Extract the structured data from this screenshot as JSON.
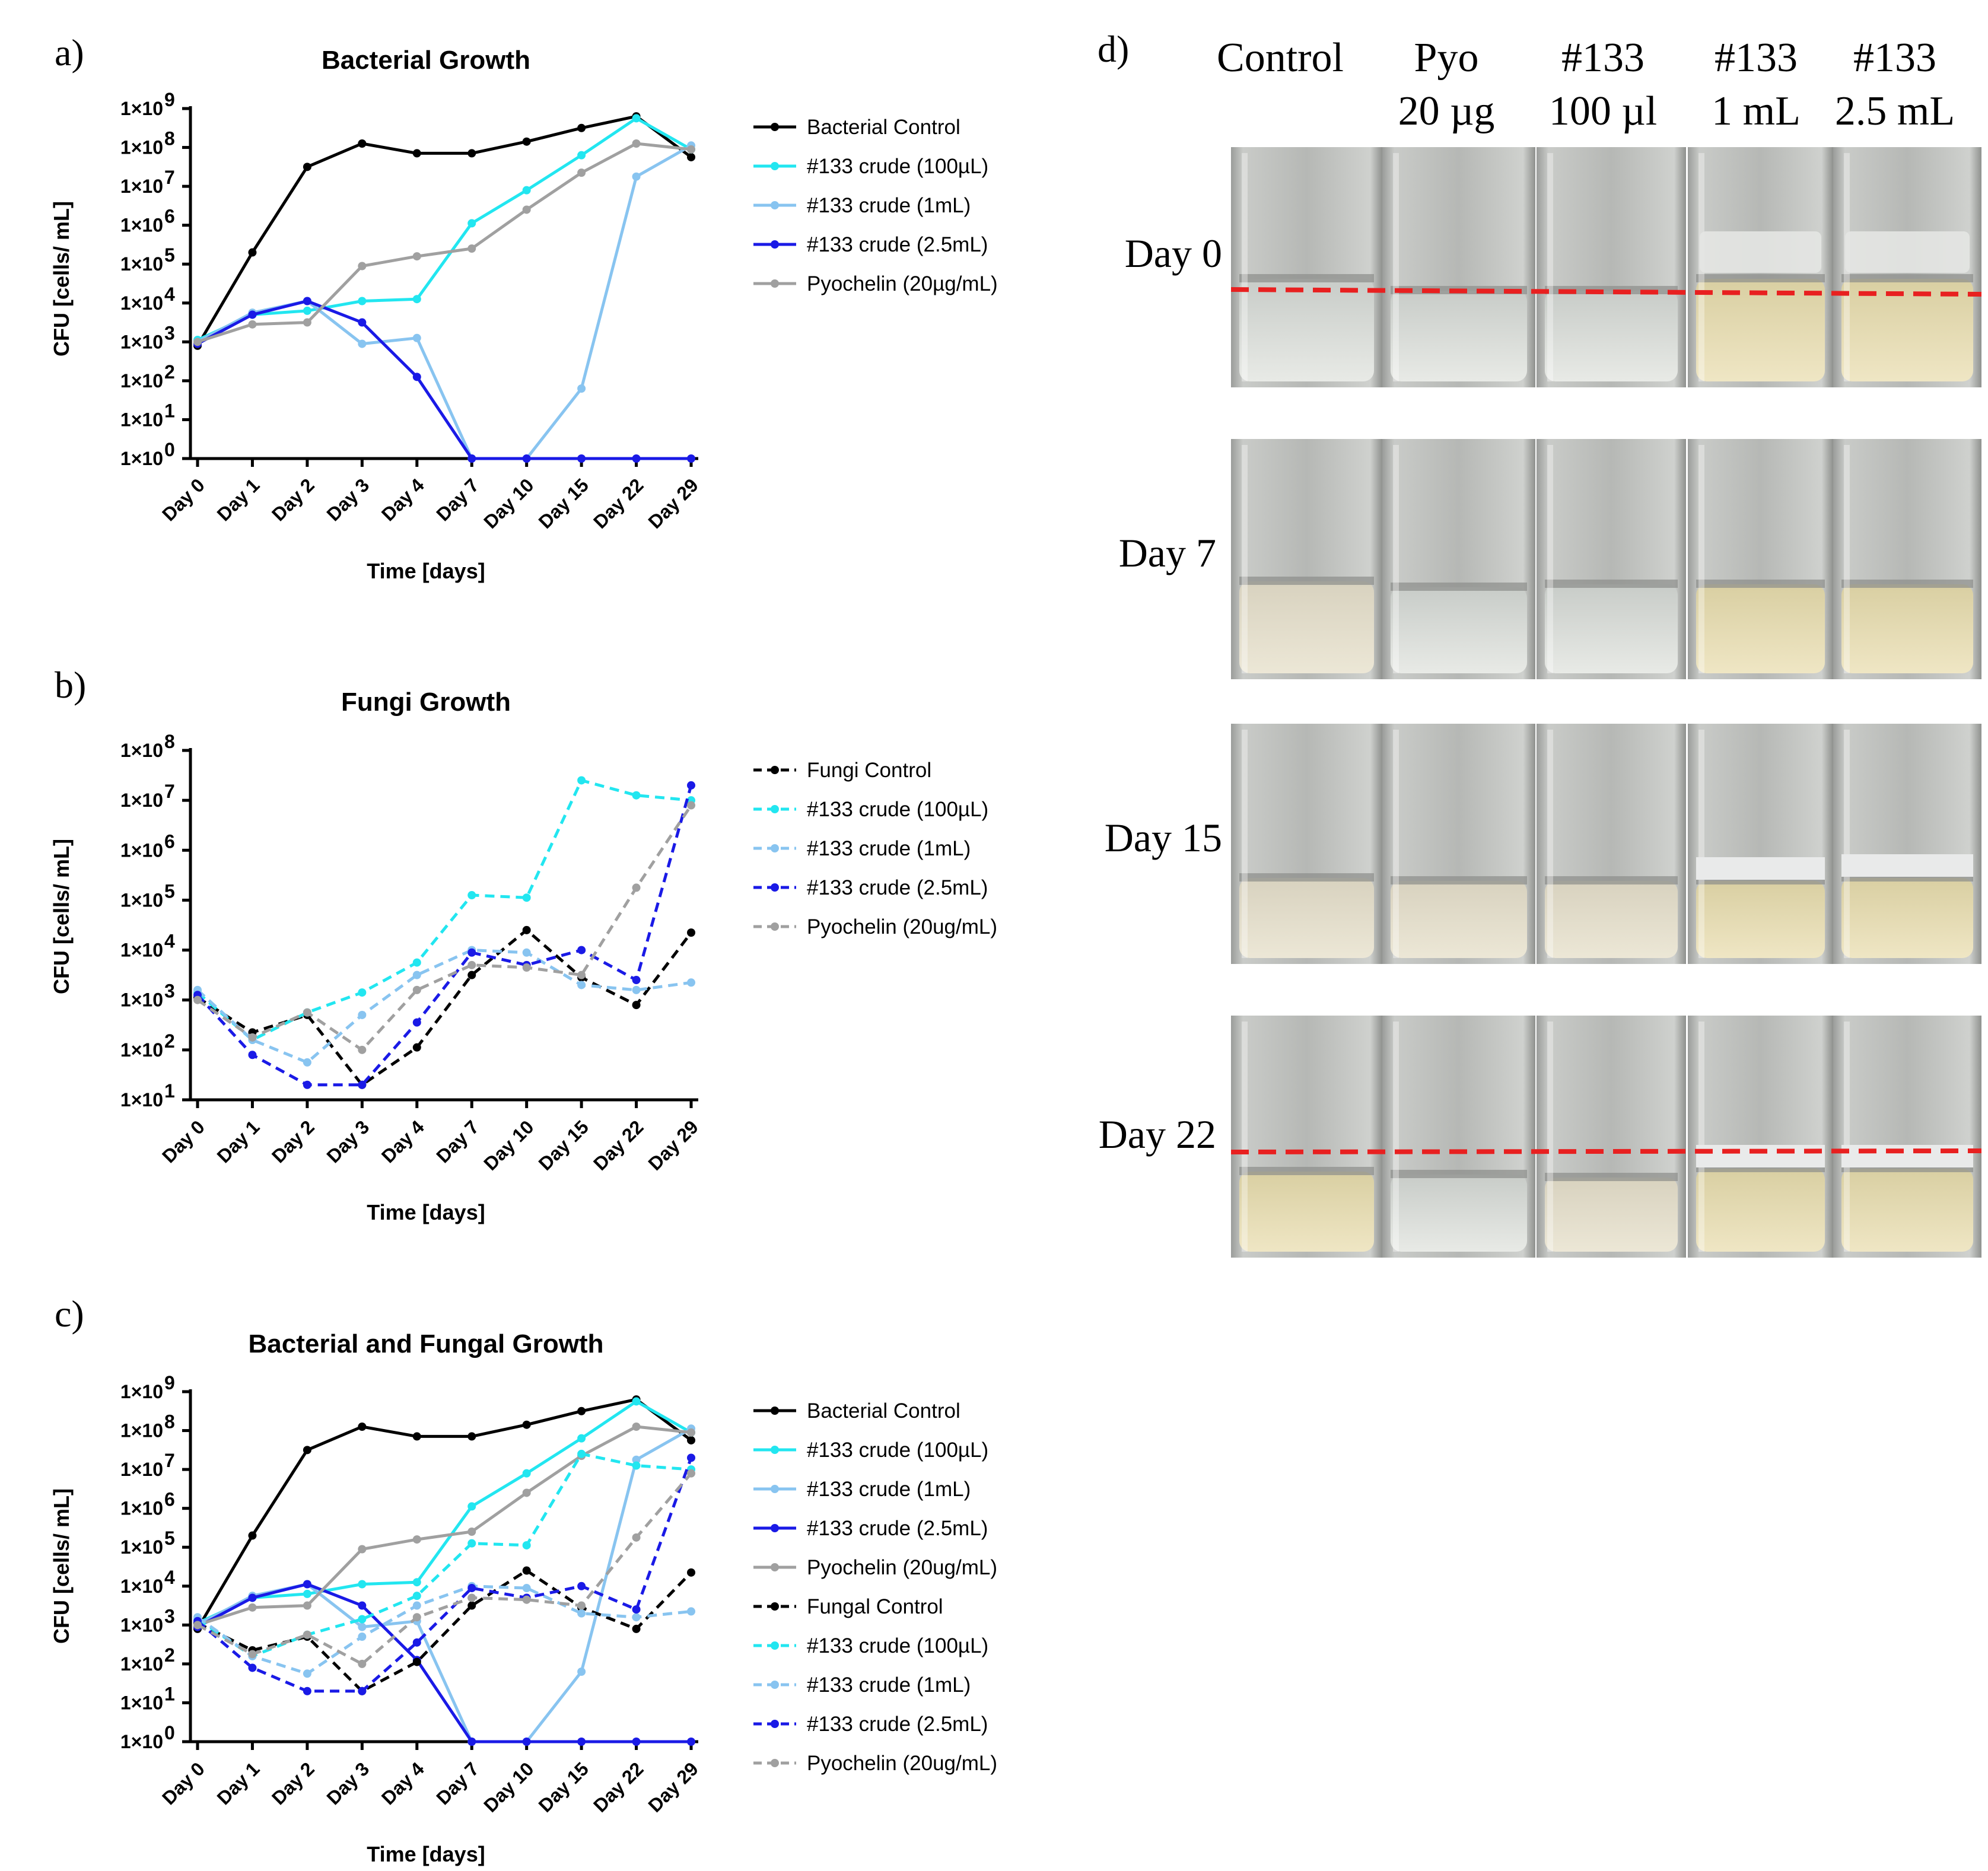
{
  "panels": [
    {
      "letter": "a)"
    },
    {
      "letter": "b)"
    },
    {
      "letter": "c)"
    },
    {
      "letter": "d)"
    }
  ],
  "chart_data": [
    {
      "id": "a",
      "type": "line",
      "title": "Bacterial Growth",
      "xlabel": "Time [days]",
      "ylabel": "CFU [cells/ mL]",
      "yscale": "log10",
      "ylim": [
        0,
        9
      ],
      "yticks": [
        {
          "exp": 9,
          "label": "1×10",
          "sup": "9"
        },
        {
          "exp": 8,
          "label": "1×10",
          "sup": "8"
        },
        {
          "exp": 7,
          "label": "1×10",
          "sup": "7"
        },
        {
          "exp": 6,
          "label": "1×10",
          "sup": "6"
        },
        {
          "exp": 5,
          "label": "1×10",
          "sup": "5"
        },
        {
          "exp": 4,
          "label": "1×10",
          "sup": "4"
        },
        {
          "exp": 3,
          "label": "1×10",
          "sup": "3"
        },
        {
          "exp": 2,
          "label": "1×10",
          "sup": "2"
        },
        {
          "exp": 1,
          "label": "1×10",
          "sup": "1"
        },
        {
          "exp": 0,
          "label": "1×10",
          "sup": "0"
        }
      ],
      "categories": [
        "Day 0",
        "Day 1",
        "Day 2",
        "Day 3",
        "Day 4",
        "Day 7",
        "Day 10",
        "Day 15",
        "Day 22",
        "Day 29"
      ],
      "series": [
        {
          "name": "Bacterial Control",
          "color": "#000000",
          "dash": false,
          "log10_values": [
            2.9,
            5.3,
            7.5,
            8.1,
            7.85,
            7.85,
            8.15,
            8.5,
            8.8,
            7.75
          ]
        },
        {
          "name": "#133 crude (100µL)",
          "color": "#22E6F0",
          "dash": false,
          "log10_values": [
            3.05,
            3.7,
            3.8,
            4.05,
            4.1,
            6.05,
            6.9,
            7.8,
            8.75,
            7.95
          ]
        },
        {
          "name": "#133 crude (1mL)",
          "color": "#88C4F0",
          "dash": false,
          "log10_values": [
            3.0,
            3.75,
            4.05,
            2.95,
            3.1,
            0.0,
            0.0,
            1.8,
            7.25,
            8.05
          ]
        },
        {
          "name": "#133 crude (2.5mL)",
          "color": "#1A1AE6",
          "dash": false,
          "log10_values": [
            2.95,
            3.7,
            4.05,
            3.5,
            2.1,
            0.0,
            0.0,
            0.0,
            0.0,
            0.0
          ]
        },
        {
          "name": "Pyochelin (20µg/mL)",
          "color": "#A0A0A0",
          "dash": false,
          "log10_values": [
            3.0,
            3.45,
            3.5,
            4.95,
            5.2,
            5.4,
            6.4,
            7.35,
            8.1,
            7.95
          ]
        }
      ]
    },
    {
      "id": "b",
      "type": "line",
      "title": "Fungi Growth",
      "xlabel": "Time [days]",
      "ylabel": "CFU [cells/ mL]",
      "yscale": "log10",
      "ylim": [
        1,
        8
      ],
      "yticks": [
        {
          "exp": 8,
          "label": "1×10",
          "sup": "8"
        },
        {
          "exp": 7,
          "label": "1×10",
          "sup": "7"
        },
        {
          "exp": 6,
          "label": "1×10",
          "sup": "6"
        },
        {
          "exp": 5,
          "label": "1×10",
          "sup": "5"
        },
        {
          "exp": 4,
          "label": "1×10",
          "sup": "4"
        },
        {
          "exp": 3,
          "label": "1×10",
          "sup": "3"
        },
        {
          "exp": 2,
          "label": "1×10",
          "sup": "2"
        },
        {
          "exp": 1,
          "label": "1×10",
          "sup": "1"
        }
      ],
      "categories": [
        "Day 0",
        "Day 1",
        "Day 2",
        "Day 3",
        "Day 4",
        "Day 7",
        "Day 10",
        "Day 15",
        "Day 22",
        "Day 29"
      ],
      "series": [
        {
          "name": "Fungi Control",
          "color": "#000000",
          "dash": true,
          "log10_values": [
            3.05,
            2.35,
            2.7,
            1.3,
            2.05,
            3.5,
            4.4,
            3.45,
            2.9,
            4.35
          ]
        },
        {
          "name": "#133 crude (100µL)",
          "color": "#22E6F0",
          "dash": true,
          "log10_values": [
            3.15,
            2.2,
            2.75,
            3.15,
            3.75,
            5.1,
            5.05,
            7.4,
            7.1,
            7.0
          ]
        },
        {
          "name": "#133 crude (1mL)",
          "color": "#88C4F0",
          "dash": true,
          "log10_values": [
            3.2,
            2.2,
            1.75,
            2.7,
            3.5,
            4.0,
            3.95,
            3.3,
            3.2,
            3.35
          ]
        },
        {
          "name": "#133 crude (2.5mL)",
          "color": "#1A1AE6",
          "dash": true,
          "log10_values": [
            3.1,
            1.9,
            1.3,
            1.3,
            2.55,
            3.95,
            3.7,
            4.0,
            3.4,
            7.3
          ]
        },
        {
          "name": "Pyochelin (20ug/mL)",
          "color": "#A0A0A0",
          "dash": true,
          "log10_values": [
            3.0,
            2.25,
            2.75,
            2.0,
            3.2,
            3.7,
            3.65,
            3.5,
            5.25,
            6.9
          ]
        }
      ]
    },
    {
      "id": "c",
      "type": "line",
      "title": "Bacterial and Fungal Growth",
      "xlabel": "Time [days]",
      "ylabel": "CFU [cells/ mL]",
      "yscale": "log10",
      "ylim": [
        0,
        9
      ],
      "yticks": [
        {
          "exp": 9,
          "label": "1×10",
          "sup": "9"
        },
        {
          "exp": 8,
          "label": "1×10",
          "sup": "8"
        },
        {
          "exp": 7,
          "label": "1×10",
          "sup": "7"
        },
        {
          "exp": 6,
          "label": "1×10",
          "sup": "6"
        },
        {
          "exp": 5,
          "label": "1×10",
          "sup": "5"
        },
        {
          "exp": 4,
          "label": "1×10",
          "sup": "4"
        },
        {
          "exp": 3,
          "label": "1×10",
          "sup": "3"
        },
        {
          "exp": 2,
          "label": "1×10",
          "sup": "2"
        },
        {
          "exp": 1,
          "label": "1×10",
          "sup": "1"
        },
        {
          "exp": 0,
          "label": "1×10",
          "sup": "0"
        }
      ],
      "categories": [
        "Day 0",
        "Day 1",
        "Day 2",
        "Day 3",
        "Day 4",
        "Day 7",
        "Day 10",
        "Day 15",
        "Day 22",
        "Day 29"
      ],
      "series": [
        {
          "name": "Bacterial Control",
          "color": "#000000",
          "dash": false,
          "log10_values": [
            2.9,
            5.3,
            7.5,
            8.1,
            7.85,
            7.85,
            8.15,
            8.5,
            8.8,
            7.75
          ]
        },
        {
          "name": "#133 crude (100µL)",
          "color": "#22E6F0",
          "dash": false,
          "log10_values": [
            3.05,
            3.7,
            3.8,
            4.05,
            4.1,
            6.05,
            6.9,
            7.8,
            8.75,
            7.95
          ]
        },
        {
          "name": "#133 crude (1mL)",
          "color": "#88C4F0",
          "dash": false,
          "log10_values": [
            3.0,
            3.75,
            4.05,
            2.95,
            3.1,
            0.0,
            0.0,
            1.8,
            7.25,
            8.05
          ]
        },
        {
          "name": "#133 crude (2.5mL)",
          "color": "#1A1AE6",
          "dash": false,
          "log10_values": [
            2.95,
            3.7,
            4.05,
            3.5,
            2.1,
            0.0,
            0.0,
            0.0,
            0.0,
            0.0
          ]
        },
        {
          "name": "Pyochelin (20ug/mL)",
          "color": "#A0A0A0",
          "dash": false,
          "log10_values": [
            3.0,
            3.45,
            3.5,
            4.95,
            5.2,
            5.4,
            6.4,
            7.35,
            8.1,
            7.95
          ]
        },
        {
          "name": "Fungal Control",
          "color": "#000000",
          "dash": true,
          "log10_values": [
            3.05,
            2.35,
            2.7,
            1.3,
            2.05,
            3.5,
            4.4,
            3.45,
            2.9,
            4.35
          ]
        },
        {
          "name": "#133 crude (100µL)",
          "color": "#22E6F0",
          "dash": true,
          "log10_values": [
            3.15,
            2.2,
            2.75,
            3.15,
            3.75,
            5.1,
            5.05,
            7.4,
            7.1,
            7.0
          ]
        },
        {
          "name": "#133 crude (1mL)",
          "color": "#88C4F0",
          "dash": true,
          "log10_values": [
            3.2,
            2.2,
            1.75,
            2.7,
            3.5,
            4.0,
            3.95,
            3.3,
            3.2,
            3.35
          ]
        },
        {
          "name": "#133 crude (2.5mL)",
          "color": "#1A1AE6",
          "dash": true,
          "log10_values": [
            3.1,
            1.9,
            1.3,
            1.3,
            2.55,
            3.95,
            3.7,
            4.0,
            3.4,
            7.3
          ]
        },
        {
          "name": "Pyochelin (20ug/mL)",
          "color": "#A0A0A0",
          "dash": true,
          "log10_values": [
            3.0,
            2.25,
            2.75,
            2.0,
            3.2,
            3.7,
            3.65,
            3.5,
            5.25,
            6.9
          ]
        }
      ]
    }
  ],
  "photo_panel": {
    "columns": [
      {
        "line1": "Control",
        "line2": ""
      },
      {
        "line1": "Pyo",
        "line2": "20 µg"
      },
      {
        "line1": "#133",
        "line2": "100 µl"
      },
      {
        "line1": "#133",
        "line2": "1 mL"
      },
      {
        "line1": "#133",
        "line2": "2.5 mL"
      }
    ],
    "rows": [
      "Day 0",
      "Day 7",
      "Day 15",
      "Day 22"
    ],
    "marker_color": "#E82020"
  }
}
